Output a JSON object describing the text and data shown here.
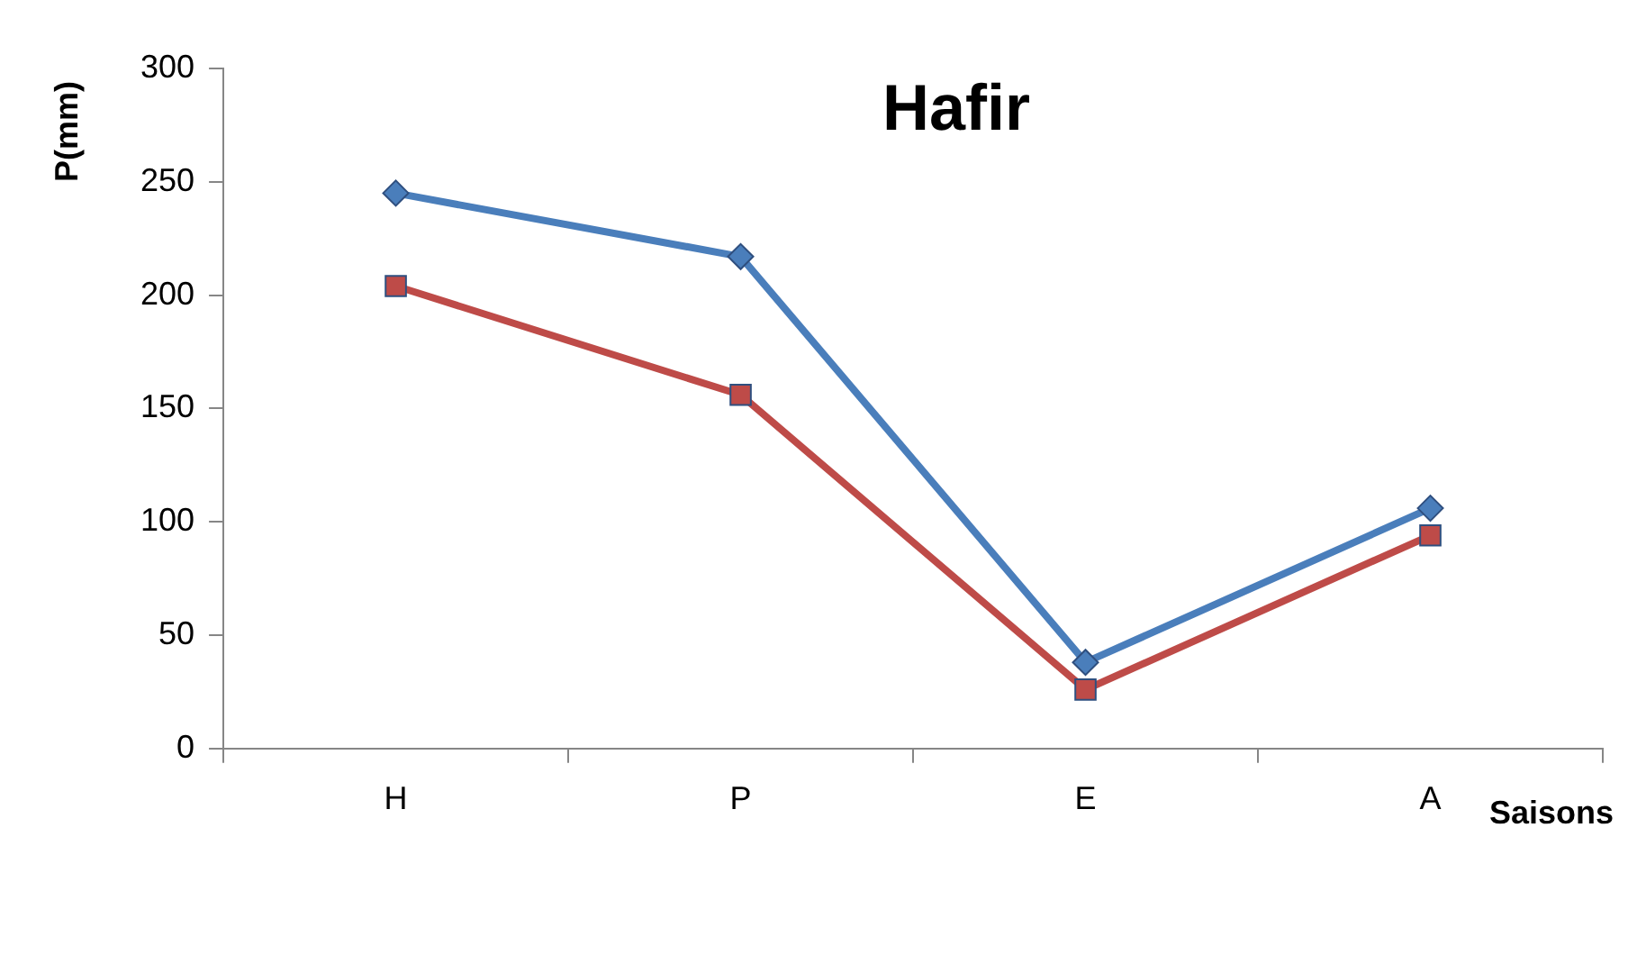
{
  "chart_data": {
    "type": "line",
    "title": "Hafir",
    "xlabel": "Saisons",
    "ylabel": "P(mm)",
    "categories": [
      "H",
      "P",
      "E",
      "A"
    ],
    "series": [
      {
        "color": "#4a7ebb",
        "values": [
          245,
          217,
          38,
          106
        ],
        "marker": "diamond"
      },
      {
        "color": "#be4b48",
        "values": [
          204,
          156,
          26,
          94
        ],
        "marker": "square"
      }
    ],
    "ylim": [
      0,
      300
    ],
    "yticks": [
      0,
      50,
      100,
      150,
      200,
      250,
      300
    ],
    "grid": false,
    "legend": false,
    "line_style": "solid"
  }
}
